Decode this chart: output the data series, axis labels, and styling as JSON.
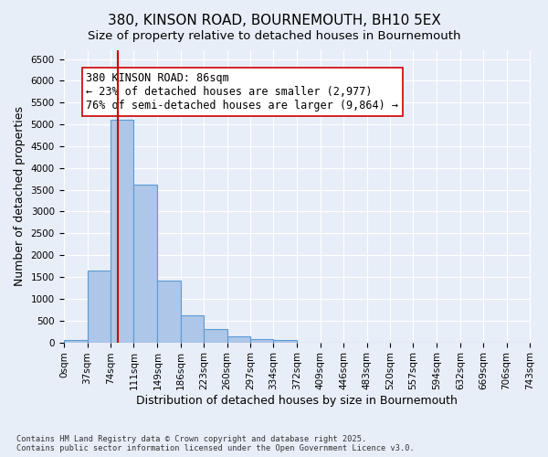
{
  "title": "380, KINSON ROAD, BOURNEMOUTH, BH10 5EX",
  "subtitle": "Size of property relative to detached houses in Bournemouth",
  "xlabel": "Distribution of detached houses by size in Bournemouth",
  "ylabel": "Number of detached properties",
  "bar_values": [
    60,
    1650,
    5100,
    3620,
    1420,
    620,
    310,
    130,
    75,
    50,
    0,
    0,
    0,
    0,
    0,
    0,
    0,
    0,
    0,
    0
  ],
  "bin_edges": [
    0,
    37,
    74,
    111,
    149,
    186,
    223,
    260,
    297,
    334,
    372,
    409,
    446,
    483,
    520,
    557,
    594,
    632,
    669,
    706,
    743
  ],
  "bin_labels": [
    "0sqm",
    "37sqm",
    "74sqm",
    "111sqm",
    "149sqm",
    "186sqm",
    "223sqm",
    "260sqm",
    "297sqm",
    "334sqm",
    "372sqm",
    "409sqm",
    "446sqm",
    "483sqm",
    "520sqm",
    "557sqm",
    "594sqm",
    "632sqm",
    "669sqm",
    "706sqm",
    "743sqm"
  ],
  "bar_color": "#aec6e8",
  "bar_edge_color": "#5b9bd5",
  "vline_x": 86,
  "vline_color": "#cc0000",
  "annotation_text": "380 KINSON ROAD: 86sqm\n← 23% of detached houses are smaller (2,977)\n76% of semi-detached houses are larger (9,864) →",
  "ylim": [
    0,
    6700
  ],
  "yticks": [
    0,
    500,
    1000,
    1500,
    2000,
    2500,
    3000,
    3500,
    4000,
    4500,
    5000,
    5500,
    6000,
    6500
  ],
  "background_color": "#e8eef8",
  "grid_color": "#ffffff",
  "footer_text": "Contains HM Land Registry data © Crown copyright and database right 2025.\nContains public sector information licensed under the Open Government Licence v3.0.",
  "title_fontsize": 11,
  "subtitle_fontsize": 9.5,
  "label_fontsize": 9,
  "tick_fontsize": 7.5,
  "annotation_fontsize": 8.5
}
